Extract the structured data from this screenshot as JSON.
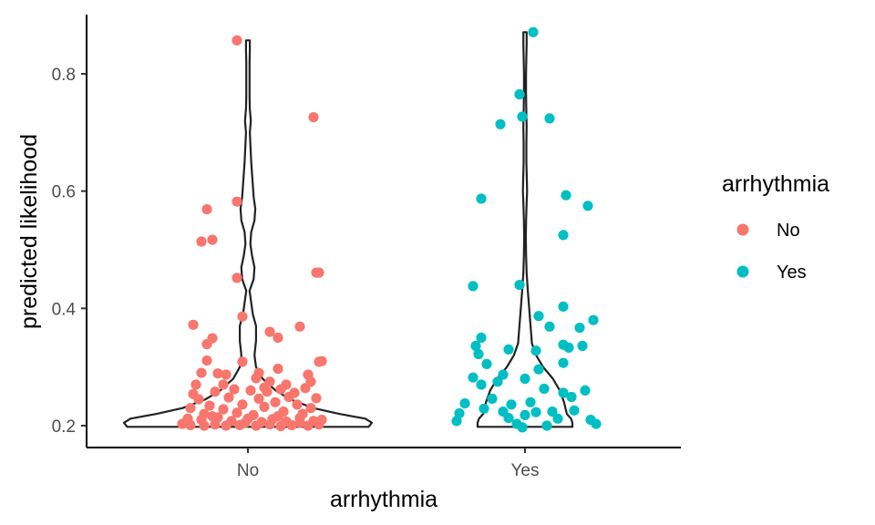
{
  "chart_data": {
    "type": "violin+jitter",
    "xlabel": "arrhythmia",
    "ylabel": "predicted likelihood",
    "categories": [
      "No",
      "Yes"
    ],
    "ylim": [
      0.17,
      0.9
    ],
    "yticks": [
      0.2,
      0.4,
      0.6,
      0.8
    ],
    "ytick_labels": [
      "0.2",
      "0.4",
      "0.6",
      "0.8"
    ],
    "legend": {
      "title": "arrhythmia",
      "position": "right",
      "entries": [
        {
          "label": "No",
          "color": "#F8766D"
        },
        {
          "label": "Yes",
          "color": "#00BFC4"
        }
      ]
    },
    "colors": {
      "No": "#F8766D",
      "Yes": "#00BFC4",
      "violin_outline": "#222222",
      "axis": "#000000"
    },
    "violins": [
      {
        "group": "No",
        "max_halfwidth": 0.76,
        "profile": [
          [
            0.198,
            0.74
          ],
          [
            0.205,
            0.76
          ],
          [
            0.212,
            0.72
          ],
          [
            0.22,
            0.56
          ],
          [
            0.23,
            0.4
          ],
          [
            0.245,
            0.26
          ],
          [
            0.26,
            0.17
          ],
          [
            0.28,
            0.09
          ],
          [
            0.3,
            0.05
          ],
          [
            0.32,
            0.04
          ],
          [
            0.345,
            0.05
          ],
          [
            0.37,
            0.05
          ],
          [
            0.39,
            0.03
          ],
          [
            0.41,
            0.02
          ],
          [
            0.43,
            0.01
          ],
          [
            0.45,
            0.035
          ],
          [
            0.47,
            0.04
          ],
          [
            0.49,
            0.025
          ],
          [
            0.51,
            0.015
          ],
          [
            0.53,
            0.02
          ],
          [
            0.55,
            0.04
          ],
          [
            0.57,
            0.045
          ],
          [
            0.59,
            0.035
          ],
          [
            0.61,
            0.03
          ],
          [
            0.63,
            0.025
          ],
          [
            0.65,
            0.02
          ],
          [
            0.68,
            0.015
          ],
          [
            0.7,
            0.012
          ],
          [
            0.72,
            0.018
          ],
          [
            0.74,
            0.012
          ],
          [
            0.76,
            0.01
          ],
          [
            0.79,
            0.01
          ],
          [
            0.82,
            0.01
          ],
          [
            0.84,
            0.012
          ],
          [
            0.857,
            0.012
          ]
        ]
      },
      {
        "group": "Yes",
        "max_halfwidth": 0.34,
        "profile": [
          [
            0.198,
            0.34
          ],
          [
            0.205,
            0.34
          ],
          [
            0.212,
            0.33
          ],
          [
            0.22,
            0.3
          ],
          [
            0.24,
            0.28
          ],
          [
            0.26,
            0.25
          ],
          [
            0.28,
            0.2
          ],
          [
            0.3,
            0.13
          ],
          [
            0.32,
            0.08
          ],
          [
            0.34,
            0.05
          ],
          [
            0.37,
            0.04
          ],
          [
            0.4,
            0.03
          ],
          [
            0.43,
            0.02
          ],
          [
            0.46,
            0.012
          ],
          [
            0.49,
            0.008
          ],
          [
            0.52,
            0.006
          ],
          [
            0.55,
            0.008
          ],
          [
            0.58,
            0.012
          ],
          [
            0.6,
            0.015
          ],
          [
            0.62,
            0.013
          ],
          [
            0.65,
            0.01
          ],
          [
            0.68,
            0.01
          ],
          [
            0.71,
            0.012
          ],
          [
            0.74,
            0.009
          ],
          [
            0.77,
            0.007
          ],
          [
            0.8,
            0.007
          ],
          [
            0.83,
            0.01
          ],
          [
            0.85,
            0.012
          ],
          [
            0.871,
            0.012
          ]
        ]
      }
    ],
    "points": [
      {
        "group": "No",
        "values": [
          [
            -0.04,
            0.857
          ],
          [
            0.24,
            0.726
          ],
          [
            -0.04,
            0.582
          ],
          [
            -0.15,
            0.569
          ],
          [
            -0.17,
            0.514
          ],
          [
            -0.13,
            0.517
          ],
          [
            -0.04,
            0.452
          ],
          [
            0.25,
            0.461
          ],
          [
            0.26,
            0.461
          ],
          [
            -0.02,
            0.386
          ],
          [
            -0.2,
            0.372
          ],
          [
            0.08,
            0.36
          ],
          [
            0.19,
            0.369
          ],
          [
            -0.13,
            0.349
          ],
          [
            0.11,
            0.35
          ],
          [
            -0.15,
            0.339
          ],
          [
            -0.15,
            0.311
          ],
          [
            -0.02,
            0.309
          ],
          [
            0.27,
            0.31
          ],
          [
            0.26,
            0.309
          ],
          [
            0.04,
            0.29
          ],
          [
            0.11,
            0.297
          ],
          [
            -0.08,
            0.287
          ],
          [
            0.22,
            0.287
          ],
          [
            -0.17,
            0.29
          ],
          [
            -0.11,
            0.289
          ],
          [
            0.03,
            0.281
          ],
          [
            0.08,
            0.275
          ],
          [
            0.23,
            0.275
          ],
          [
            -0.2,
            0.254
          ],
          [
            -0.12,
            0.258
          ],
          [
            -0.05,
            0.262
          ],
          [
            0.01,
            0.26
          ],
          [
            0.07,
            0.258
          ],
          [
            0.12,
            0.262
          ],
          [
            0.17,
            0.256
          ],
          [
            0.21,
            0.264
          ],
          [
            -0.18,
            0.245
          ],
          [
            -0.07,
            0.248
          ],
          [
            0.04,
            0.246
          ],
          [
            0.15,
            0.249
          ],
          [
            0.25,
            0.247
          ],
          [
            -0.21,
            0.23
          ],
          [
            -0.14,
            0.234
          ],
          [
            -0.09,
            0.228
          ],
          [
            -0.02,
            0.236
          ],
          [
            0.06,
            0.232
          ],
          [
            0.1,
            0.24
          ],
          [
            0.18,
            0.236
          ],
          [
            0.23,
            0.23
          ],
          [
            -0.16,
            0.22
          ],
          [
            -0.04,
            0.222
          ],
          [
            0.02,
            0.218
          ],
          [
            0.13,
            0.224
          ],
          [
            0.2,
            0.22
          ],
          [
            -0.22,
            0.212
          ],
          [
            -0.17,
            0.21
          ],
          [
            -0.11,
            0.214
          ],
          [
            -0.06,
            0.208
          ],
          [
            0.0,
            0.212
          ],
          [
            0.05,
            0.206
          ],
          [
            0.09,
            0.211
          ],
          [
            0.14,
            0.207
          ],
          [
            0.19,
            0.213
          ],
          [
            0.24,
            0.208
          ],
          [
            0.27,
            0.21
          ],
          [
            -0.21,
            0.201
          ],
          [
            -0.16,
            0.2
          ],
          [
            -0.12,
            0.202
          ],
          [
            -0.08,
            0.2
          ],
          [
            -0.03,
            0.201
          ],
          [
            0.03,
            0.2
          ],
          [
            0.08,
            0.202
          ],
          [
            0.12,
            0.199
          ],
          [
            0.16,
            0.201
          ],
          [
            0.22,
            0.2
          ],
          [
            0.26,
            0.202
          ],
          [
            -0.24,
            0.203
          ],
          [
            -0.09,
            0.27
          ],
          [
            0.14,
            0.27
          ],
          [
            -0.19,
            0.27
          ],
          [
            0.06,
            0.265
          ],
          [
            -0.13,
            0.216
          ],
          [
            0.11,
            0.216
          ],
          [
            -0.01,
            0.205
          ],
          [
            0.19,
            0.205
          ]
        ]
      },
      {
        "group": "Yes",
        "values": [
          [
            0.03,
            0.871
          ],
          [
            -0.02,
            0.765
          ],
          [
            -0.01,
            0.727
          ],
          [
            0.09,
            0.724
          ],
          [
            -0.09,
            0.714
          ],
          [
            -0.16,
            0.587
          ],
          [
            0.15,
            0.593
          ],
          [
            0.23,
            0.575
          ],
          [
            0.14,
            0.525
          ],
          [
            -0.19,
            0.438
          ],
          [
            -0.02,
            0.44
          ],
          [
            0.14,
            0.403
          ],
          [
            0.25,
            0.38
          ],
          [
            0.05,
            0.387
          ],
          [
            0.2,
            0.367
          ],
          [
            -0.16,
            0.35
          ],
          [
            0.09,
            0.369
          ],
          [
            -0.18,
            0.336
          ],
          [
            0.14,
            0.338
          ],
          [
            0.16,
            0.333
          ],
          [
            -0.17,
            0.322
          ],
          [
            -0.06,
            0.33
          ],
          [
            0.04,
            0.328
          ],
          [
            0.21,
            0.336
          ],
          [
            -0.14,
            0.305
          ],
          [
            0.14,
            0.307
          ],
          [
            0.05,
            0.296
          ],
          [
            -0.19,
            0.282
          ],
          [
            -0.08,
            0.287
          ],
          [
            0.0,
            0.28
          ],
          [
            0.07,
            0.263
          ],
          [
            -0.16,
            0.27
          ],
          [
            -0.1,
            0.275
          ],
          [
            0.14,
            0.256
          ],
          [
            0.22,
            0.26
          ],
          [
            0.17,
            0.249
          ],
          [
            -0.22,
            0.238
          ],
          [
            -0.12,
            0.246
          ],
          [
            -0.05,
            0.236
          ],
          [
            0.02,
            0.24
          ],
          [
            -0.15,
            0.229
          ],
          [
            -0.08,
            0.224
          ],
          [
            -0.24,
            0.221
          ],
          [
            0.04,
            0.223
          ],
          [
            0.1,
            0.224
          ],
          [
            0.18,
            0.226
          ],
          [
            0.24,
            0.21
          ],
          [
            0.26,
            0.203
          ],
          [
            -0.25,
            0.208
          ],
          [
            -0.06,
            0.213
          ],
          [
            0.0,
            0.218
          ],
          [
            -0.03,
            0.203
          ],
          [
            -0.01,
            0.197
          ],
          [
            0.08,
            0.2
          ],
          [
            0.12,
            0.212
          ]
        ]
      }
    ]
  }
}
